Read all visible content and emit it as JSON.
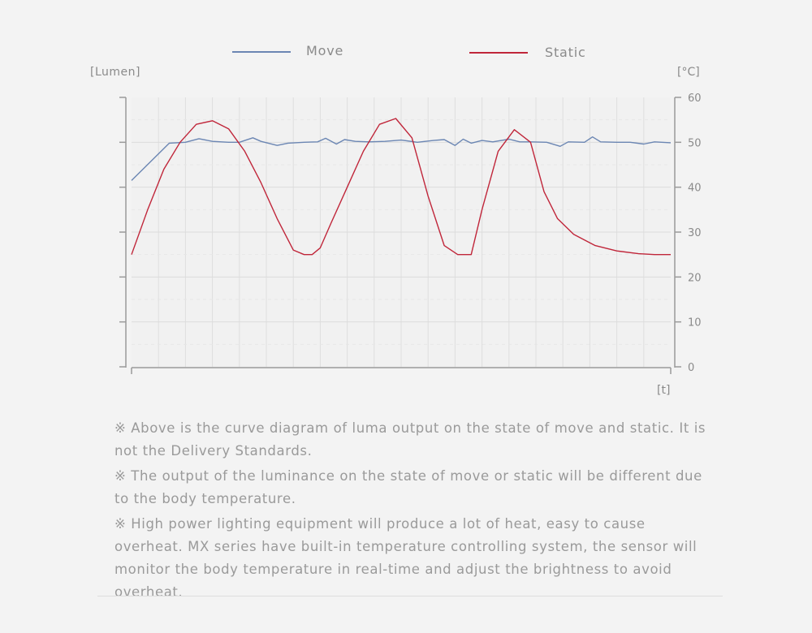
{
  "chart_data": {
    "type": "line",
    "y_left_unit": "[Lumen]",
    "y_right_unit": "[°C]",
    "x_unit": "[t]",
    "y_right_ticks": [
      "0",
      "10",
      "20",
      "30",
      "40",
      "50",
      "60"
    ],
    "y_right_range": [
      0,
      60
    ],
    "x_range": [
      0,
      100
    ],
    "grid": true,
    "legend_position": "top",
    "series": [
      {
        "name": "Move",
        "color": "#6b86b3",
        "x": [
          0,
          7,
          10,
          12.5,
          15,
          18,
          20,
          22.5,
          24,
          27,
          29,
          32,
          34.5,
          36,
          38,
          39.5,
          41.5,
          44,
          47,
          50,
          53,
          56,
          58,
          60,
          61.5,
          63,
          65,
          67,
          70,
          72,
          74,
          77,
          79.5,
          81,
          84,
          85.5,
          87,
          90,
          92.5,
          95,
          97,
          100
        ],
        "values": [
          41.5,
          49.8,
          50.0,
          50.8,
          50.2,
          50.0,
          50.0,
          51.0,
          50.2,
          49.3,
          49.8,
          50.0,
          50.1,
          50.9,
          49.6,
          50.6,
          50.2,
          50.1,
          50.2,
          50.5,
          50.0,
          50.4,
          50.6,
          49.3,
          50.7,
          49.8,
          50.4,
          50.1,
          50.7,
          50.1,
          50.1,
          50.0,
          49.1,
          50.1,
          50.0,
          51.2,
          50.1,
          50.0,
          50.0,
          49.6,
          50.1,
          49.9
        ]
      },
      {
        "name": "Static",
        "color": "#c0263a",
        "x": [
          0,
          3,
          6,
          9,
          12,
          15,
          18,
          21,
          24,
          27,
          30,
          32,
          33.5,
          35,
          37,
          40,
          43,
          46,
          49,
          52,
          55,
          58,
          60.5,
          63,
          65,
          68,
          71,
          74,
          76.5,
          79,
          82,
          86,
          90,
          94,
          97,
          100
        ],
        "values": [
          25,
          35,
          44,
          50,
          54,
          54.8,
          53,
          48,
          41,
          33,
          26,
          25,
          25,
          26.5,
          32,
          40,
          48,
          54,
          55.3,
          51,
          38,
          27,
          25,
          25,
          35,
          48,
          52.8,
          50,
          39,
          33,
          29.5,
          27,
          25.8,
          25.2,
          25.0,
          25.0
        ]
      }
    ]
  },
  "notes": [
    "※ Above is the curve diagram of luma output on the state of move and static. It is not the Delivery Standards.",
    "※ The output of the luminance on the state of move or static will be different due to the body temperature.",
    "※ High power lighting equipment will produce a lot of heat, easy to cause overheat. MX series have built-in temperature controlling system, the sensor will monitor the body temperature in real-time and adjust the brightness to avoid overheat."
  ]
}
